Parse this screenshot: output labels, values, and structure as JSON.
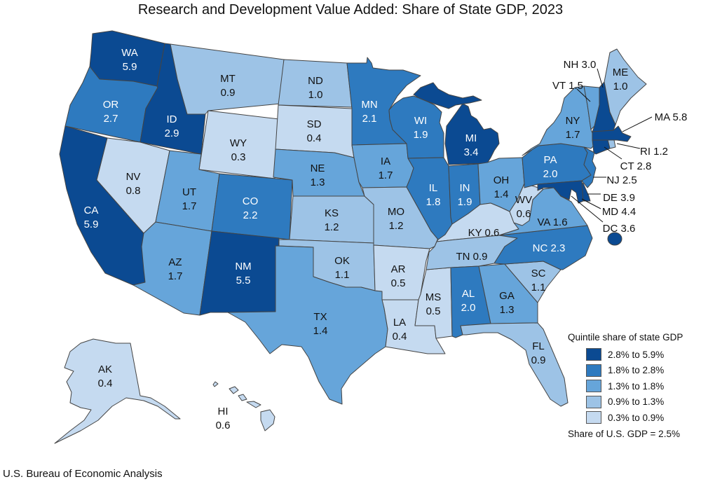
{
  "title": "Research and Development Value Added: Share of State GDP, 2023",
  "source": "U.S. Bureau of Economic Analysis",
  "legend": {
    "title": "Quintile share of state GDP",
    "bins": [
      {
        "label": "2.8% to 5.9%",
        "color": "#0b4a92"
      },
      {
        "label": "1.8% to 2.8%",
        "color": "#2e7abf"
      },
      {
        "label": "1.3% to 1.8%",
        "color": "#66a5da"
      },
      {
        "label": "0.9% to 1.3%",
        "color": "#9dc3e6"
      },
      {
        "label": "0.3% to 0.9%",
        "color": "#c5daf0"
      }
    ],
    "note": "Share of U.S. GDP = 2.5%"
  },
  "states": [
    {
      "abbr": "WA",
      "value": "5.9",
      "bin": 0
    },
    {
      "abbr": "OR",
      "value": "2.7",
      "bin": 1
    },
    {
      "abbr": "CA",
      "value": "5.9",
      "bin": 0
    },
    {
      "abbr": "ID",
      "value": "2.9",
      "bin": 0
    },
    {
      "abbr": "NV",
      "value": "0.8",
      "bin": 4
    },
    {
      "abbr": "MT",
      "value": "0.9",
      "bin": 3
    },
    {
      "abbr": "WY",
      "value": "0.3",
      "bin": 4
    },
    {
      "abbr": "UT",
      "value": "1.7",
      "bin": 2
    },
    {
      "abbr": "AZ",
      "value": "1.7",
      "bin": 2
    },
    {
      "abbr": "CO",
      "value": "2.2",
      "bin": 1
    },
    {
      "abbr": "NM",
      "value": "5.5",
      "bin": 0
    },
    {
      "abbr": "ND",
      "value": "1.0",
      "bin": 3
    },
    {
      "abbr": "SD",
      "value": "0.4",
      "bin": 4
    },
    {
      "abbr": "NE",
      "value": "1.3",
      "bin": 2
    },
    {
      "abbr": "KS",
      "value": "1.2",
      "bin": 3
    },
    {
      "abbr": "OK",
      "value": "1.1",
      "bin": 3
    },
    {
      "abbr": "TX",
      "value": "1.4",
      "bin": 2
    },
    {
      "abbr": "MN",
      "value": "2.1",
      "bin": 1
    },
    {
      "abbr": "IA",
      "value": "1.7",
      "bin": 2
    },
    {
      "abbr": "MO",
      "value": "1.2",
      "bin": 3
    },
    {
      "abbr": "AR",
      "value": "0.5",
      "bin": 4
    },
    {
      "abbr": "LA",
      "value": "0.4",
      "bin": 4
    },
    {
      "abbr": "WI",
      "value": "1.9",
      "bin": 1
    },
    {
      "abbr": "IL",
      "value": "1.8",
      "bin": 1
    },
    {
      "abbr": "MS",
      "value": "0.5",
      "bin": 4
    },
    {
      "abbr": "MI",
      "value": "3.4",
      "bin": 0
    },
    {
      "abbr": "IN",
      "value": "1.9",
      "bin": 1
    },
    {
      "abbr": "OH",
      "value": "1.4",
      "bin": 2
    },
    {
      "abbr": "KY",
      "value": "0.6",
      "bin": 4
    },
    {
      "abbr": "TN",
      "value": "0.9",
      "bin": 3
    },
    {
      "abbr": "AL",
      "value": "2.0",
      "bin": 1
    },
    {
      "abbr": "GA",
      "value": "1.3",
      "bin": 2
    },
    {
      "abbr": "FL",
      "value": "0.9",
      "bin": 3
    },
    {
      "abbr": "SC",
      "value": "1.1",
      "bin": 3
    },
    {
      "abbr": "NC",
      "value": "2.3",
      "bin": 1
    },
    {
      "abbr": "VA",
      "value": "1.6",
      "bin": 2
    },
    {
      "abbr": "WV",
      "value": "0.6",
      "bin": 4
    },
    {
      "abbr": "PA",
      "value": "2.0",
      "bin": 1
    },
    {
      "abbr": "NY",
      "value": "1.7",
      "bin": 2
    },
    {
      "abbr": "VT",
      "value": "1.5",
      "bin": 2
    },
    {
      "abbr": "NH",
      "value": "3.0",
      "bin": 0
    },
    {
      "abbr": "ME",
      "value": "1.0",
      "bin": 3
    },
    {
      "abbr": "MA",
      "value": "5.8",
      "bin": 0
    },
    {
      "abbr": "RI",
      "value": "1.2",
      "bin": 3
    },
    {
      "abbr": "CT",
      "value": "2.8",
      "bin": 0
    },
    {
      "abbr": "NJ",
      "value": "2.5",
      "bin": 1
    },
    {
      "abbr": "DE",
      "value": "3.9",
      "bin": 0
    },
    {
      "abbr": "MD",
      "value": "4.4",
      "bin": 0
    },
    {
      "abbr": "DC",
      "value": "3.6",
      "bin": 0
    },
    {
      "abbr": "AK",
      "value": "0.4",
      "bin": 4
    },
    {
      "abbr": "HI",
      "value": "0.6",
      "bin": 4
    }
  ]
}
